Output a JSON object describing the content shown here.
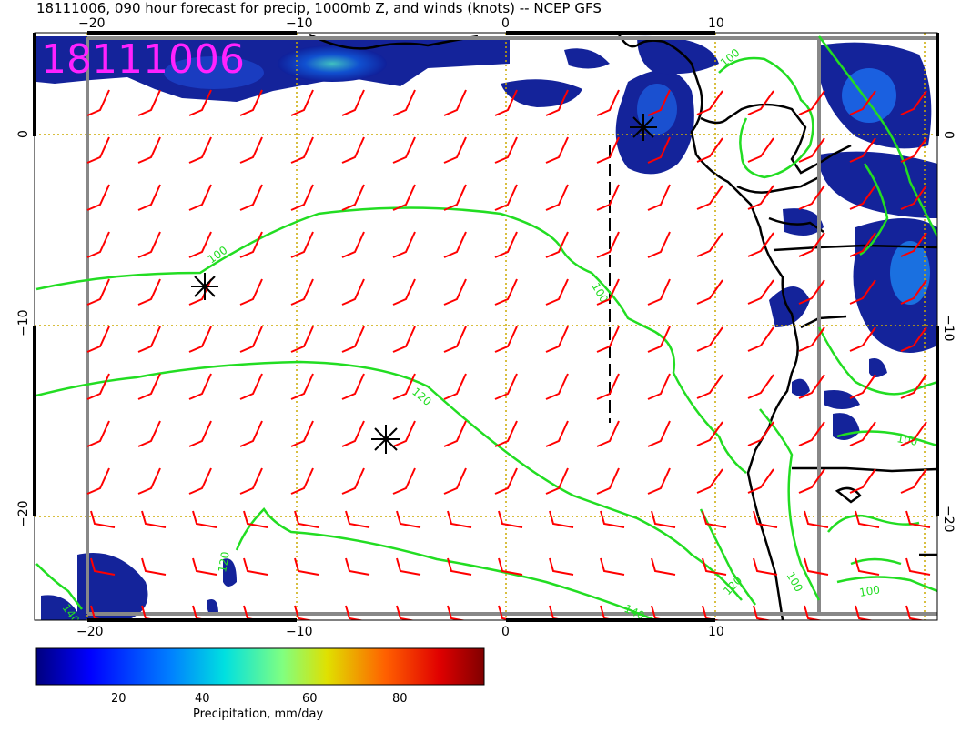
{
  "title": "18111006, 090 hour forecast for precip, 1000mb Z, and winds (knots) -- NCEP GFS",
  "datestamp": "18111006",
  "x_ticks_top": [
    "−20",
    "−10",
    "0",
    "10"
  ],
  "x_ticks_bottom": [
    "−20",
    "−10",
    "0",
    "10"
  ],
  "y_ticks_left": [
    "0",
    "−10",
    "−20"
  ],
  "y_ticks_right": [
    "0",
    "−10",
    "−20"
  ],
  "contour_labels": {
    "c100_west": "100",
    "c100_mid": "100",
    "c120_mid": "120",
    "c140_south": "140",
    "c140_sw": "140",
    "c120_se": "120",
    "c100_coast": "100",
    "c100_east": "100",
    "c100_se": "100",
    "c120_left": "120",
    "c100_top": "100"
  },
  "colorbar": {
    "ticks": [
      "20",
      "40",
      "60",
      "80"
    ],
    "label": "Precipitation, mm/day"
  },
  "colors": {
    "wind_barbs": "#ff0000",
    "contours": "#22dd22",
    "datestamp": "#ff22ff",
    "gridlines": "#ccaa00",
    "coastline": "#000000",
    "frame": "#888888"
  }
}
